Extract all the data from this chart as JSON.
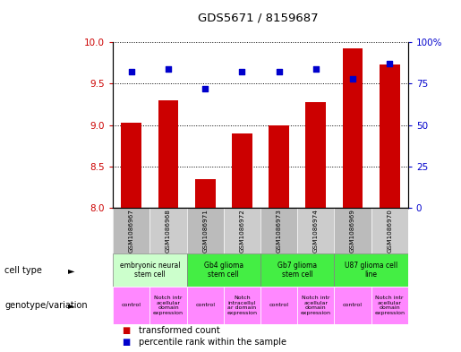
{
  "title": "GDS5671 / 8159687",
  "samples": [
    "GSM1086967",
    "GSM1086968",
    "GSM1086971",
    "GSM1086972",
    "GSM1086973",
    "GSM1086974",
    "GSM1086969",
    "GSM1086970"
  ],
  "transformed_counts": [
    9.03,
    9.3,
    8.35,
    8.9,
    9.0,
    9.28,
    9.93,
    9.73
  ],
  "percentile_ranks": [
    82,
    84,
    72,
    82,
    82,
    84,
    78,
    87
  ],
  "ylim_left": [
    8.0,
    10.0
  ],
  "ylim_right": [
    0,
    100
  ],
  "yticks_left": [
    8.0,
    8.5,
    9.0,
    9.5,
    10.0
  ],
  "yticks_right": [
    0,
    25,
    50,
    75,
    100
  ],
  "bar_color": "#cc0000",
  "dot_color": "#0000cc",
  "bar_bottom": 8.0,
  "cell_type_groups": [
    {
      "label": "embryonic neural\nstem cell",
      "start": 0,
      "end": 2,
      "color": "#ccffcc"
    },
    {
      "label": "Gb4 glioma\nstem cell",
      "start": 2,
      "end": 4,
      "color": "#44ee44"
    },
    {
      "label": "Gb7 glioma\nstem cell",
      "start": 4,
      "end": 6,
      "color": "#44ee44"
    },
    {
      "label": "U87 glioma cell\nline",
      "start": 6,
      "end": 8,
      "color": "#44ee44"
    }
  ],
  "genotype_groups": [
    {
      "label": "control",
      "start": 0,
      "end": 1,
      "color": "#ff88ff"
    },
    {
      "label": "Notch intr\nacellular\ndomain\nexpression",
      "start": 1,
      "end": 2,
      "color": "#ff88ff"
    },
    {
      "label": "control",
      "start": 2,
      "end": 3,
      "color": "#ff88ff"
    },
    {
      "label": "Notch\nintracellul\nar domain\nexpression",
      "start": 3,
      "end": 4,
      "color": "#ff88ff"
    },
    {
      "label": "control",
      "start": 4,
      "end": 5,
      "color": "#ff88ff"
    },
    {
      "label": "Notch intr\nacellular\ndomain\nexpression",
      "start": 5,
      "end": 6,
      "color": "#ff88ff"
    },
    {
      "label": "control",
      "start": 6,
      "end": 7,
      "color": "#ff88ff"
    },
    {
      "label": "Notch intr\nacellular\ndomain\nexpression",
      "start": 7,
      "end": 8,
      "color": "#ff88ff"
    }
  ],
  "sample_bg_even": "#bbbbbb",
  "sample_bg_odd": "#cccccc",
  "tick_color_left": "#cc0000",
  "tick_color_right": "#0000cc"
}
